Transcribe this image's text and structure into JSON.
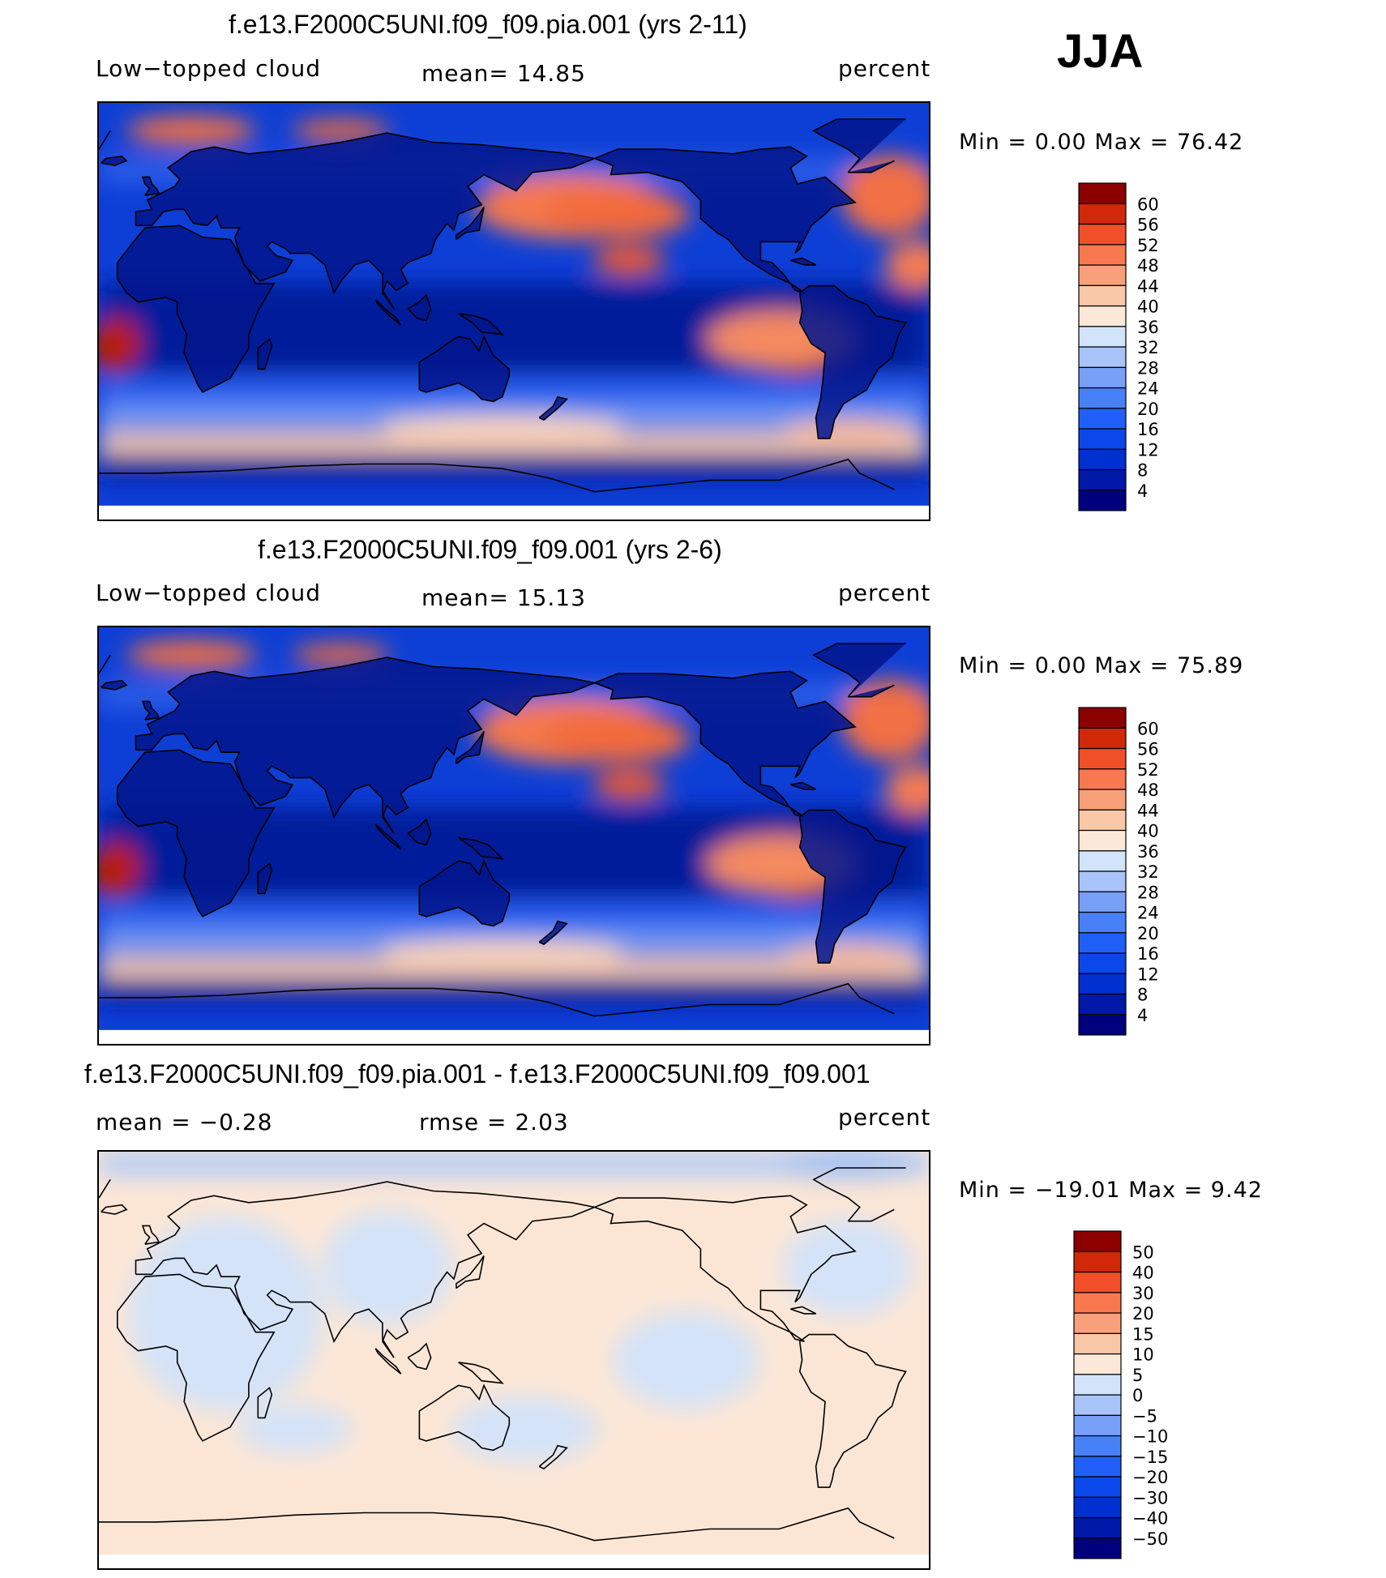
{
  "season": "JJA",
  "panels": [
    {
      "title": "f.e13.F2000C5UNI.f09_f09.pia.001 (yrs 2-11)",
      "left_label": "Low−topped cloud",
      "center_label": "mean=   14.85",
      "right_label": "percent",
      "minmax": "Min =     0.00 Max =    76.42"
    },
    {
      "title": "f.e13.F2000C5UNI.f09_f09.001 (yrs 2-6)",
      "left_label": "Low−topped cloud",
      "center_label": "mean=   15.13",
      "right_label": "percent",
      "minmax": "Min =     0.00 Max =    75.89"
    },
    {
      "title": "f.e13.F2000C5UNI.f09_f09.pia.001 - f.e13.F2000C5UNI.f09_f09.001",
      "left_label": "mean =   −0.28",
      "center_label": "rmse =     2.03",
      "right_label": "percent",
      "minmax": "Min = −19.01  Max =     9.42"
    }
  ],
  "chart_data": [
    {
      "type": "heatmap",
      "title": "f.e13.F2000C5UNI.f09_f09.pia.001 (yrs 2-11)",
      "variable": "Low−topped cloud",
      "units": "percent",
      "mean": 14.85,
      "min": 0.0,
      "max": 76.42,
      "colorbar_levels": [
        4,
        8,
        12,
        16,
        20,
        24,
        28,
        32,
        36,
        40,
        44,
        48,
        52,
        56,
        60
      ],
      "colorbar_colors": [
        "#00007f",
        "#0018a8",
        "#0030d0",
        "#0a48ec",
        "#2060f8",
        "#4880f8",
        "#78a0f8",
        "#a8c4f8",
        "#d2e4fa",
        "#fbe8d8",
        "#f8c8a8",
        "#f8a07a",
        "#f87850",
        "#f04f28",
        "#d02808",
        "#8c0000"
      ]
    },
    {
      "type": "heatmap",
      "title": "f.e13.F2000C5UNI.f09_f09.001 (yrs 2-6)",
      "variable": "Low−topped cloud",
      "units": "percent",
      "mean": 15.13,
      "min": 0.0,
      "max": 75.89,
      "colorbar_levels": [
        4,
        8,
        12,
        16,
        20,
        24,
        28,
        32,
        36,
        40,
        44,
        48,
        52,
        56,
        60
      ],
      "colorbar_colors": [
        "#00007f",
        "#0018a8",
        "#0030d0",
        "#0a48ec",
        "#2060f8",
        "#4880f8",
        "#78a0f8",
        "#a8c4f8",
        "#d2e4fa",
        "#fbe8d8",
        "#f8c8a8",
        "#f8a07a",
        "#f87850",
        "#f04f28",
        "#d02808",
        "#8c0000"
      ]
    },
    {
      "type": "heatmap",
      "title": "f.e13.F2000C5UNI.f09_f09.pia.001 - f.e13.F2000C5UNI.f09_f09.001",
      "units": "percent",
      "mean": -0.28,
      "rmse": 2.03,
      "min": -19.01,
      "max": 9.42,
      "colorbar_levels": [
        -50,
        -40,
        -30,
        -20,
        -15,
        -10,
        -5,
        0,
        5,
        10,
        15,
        20,
        30,
        40,
        50
      ],
      "colorbar_labels": [
        "−50",
        "−40",
        "−30",
        "−20",
        "−15",
        "−10",
        "−5",
        "0",
        "5",
        "10",
        "15",
        "20",
        "30",
        "40",
        "50"
      ],
      "colorbar_colors": [
        "#00007f",
        "#0018a8",
        "#0030d0",
        "#0a48ec",
        "#2060f8",
        "#4880f8",
        "#78a0f8",
        "#a8c4f8",
        "#d2e4fa",
        "#fbe8d8",
        "#f8c8a8",
        "#f8a07a",
        "#f87850",
        "#f04f28",
        "#d02808",
        "#8c0000"
      ]
    }
  ]
}
